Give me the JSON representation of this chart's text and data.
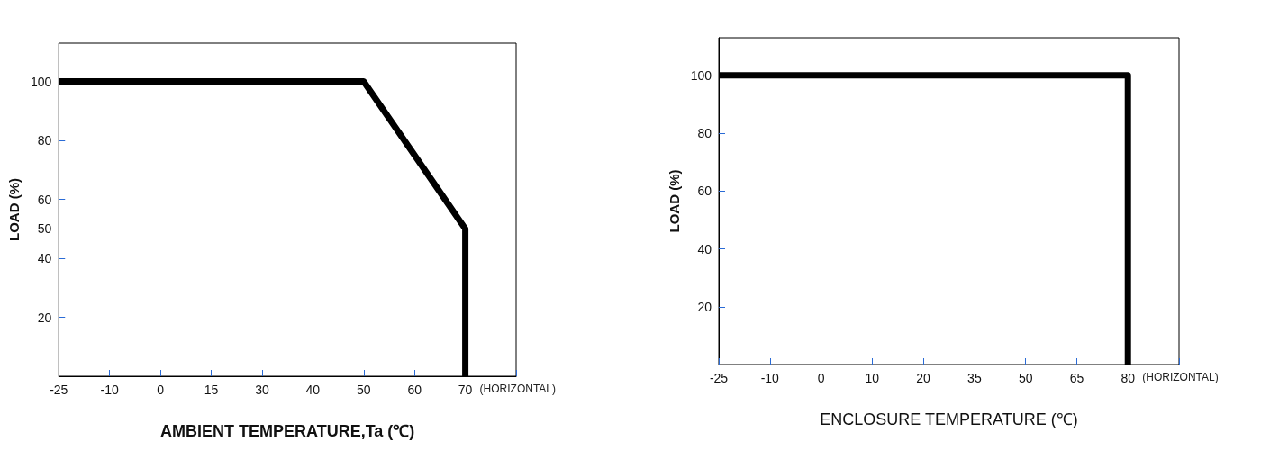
{
  "chart_data": [
    {
      "type": "line",
      "xlabel": "AMBIENT TEMPERATURE,Ta (℃)",
      "ylabel": "LOAD (%)",
      "categories": [
        "-25",
        "-10",
        "0",
        "15",
        "30",
        "40",
        "50",
        "60",
        "70",
        null
      ],
      "series": [
        {
          "color": "#000000",
          "x": [
            "-25",
            "50",
            "70",
            "70"
          ],
          "values": [
            100,
            100,
            50,
            0
          ]
        }
      ],
      "ylim": [
        0,
        113
      ],
      "yticks": [
        20,
        40,
        50,
        60,
        80,
        100
      ],
      "grid": false,
      "marker": "none",
      "line_style": "solid",
      "annotations": [
        "(HORIZONTAL)"
      ]
    },
    {
      "type": "line",
      "xlabel": "ENCLOSURE TEMPERATURE (℃)",
      "ylabel": "LOAD (%)",
      "categories": [
        "-25",
        "-10",
        "0",
        "10",
        "20",
        "35",
        "50",
        "65",
        "80",
        null
      ],
      "series": [
        {
          "color": "#000000",
          "x": [
            "-25",
            "80",
            "80"
          ],
          "values": [
            100,
            100,
            0
          ]
        }
      ],
      "ylim": [
        0,
        113
      ],
      "yticks": [
        20,
        40,
        {
          "value": 50,
          "label": null
        },
        60,
        80,
        100
      ],
      "grid": false,
      "marker": "none",
      "line_style": "solid",
      "annotations": [
        "(HORIZONTAL)"
      ]
    }
  ]
}
